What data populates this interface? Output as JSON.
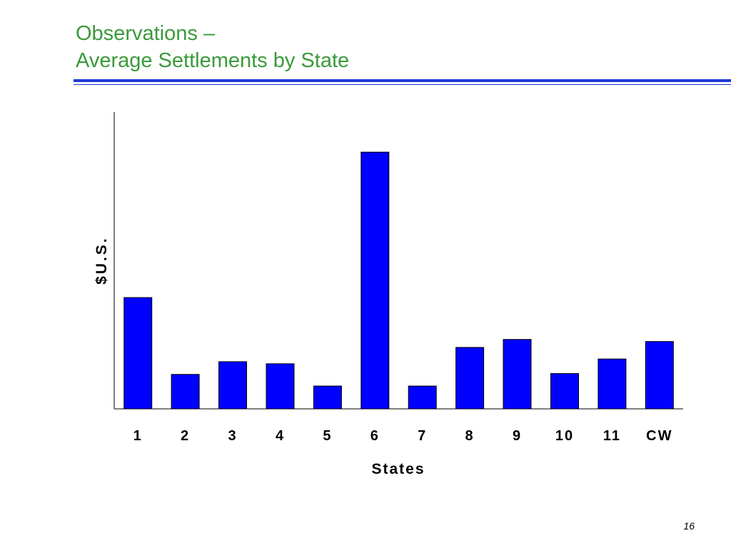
{
  "slide": {
    "title_line1": "Observations –",
    "title_line2": "Average Settlements by State",
    "page_number": "16"
  },
  "colors": {
    "title": "#3a9a3a",
    "rule": "#1f3bd6",
    "bar_fill": "#0000ff",
    "bar_stroke": "#000000"
  },
  "chart_data": {
    "type": "bar",
    "categories": [
      "1",
      "2",
      "3",
      "4",
      "5",
      "6",
      "7",
      "8",
      "9",
      "10",
      "11",
      "CW"
    ],
    "values": [
      37.5,
      11.6,
      15.9,
      15.2,
      7.7,
      86.5,
      7.7,
      20.7,
      23.4,
      11.9,
      16.8,
      22.7
    ],
    "title": "",
    "xlabel": "States",
    "ylabel": "$U.S.",
    "ylim": [
      0,
      100
    ],
    "y_tick_labels_shown": false,
    "grid": false,
    "legend": "none",
    "value_note": "y values relative (0-100 scale); the chart prints no y-axis tick values"
  }
}
